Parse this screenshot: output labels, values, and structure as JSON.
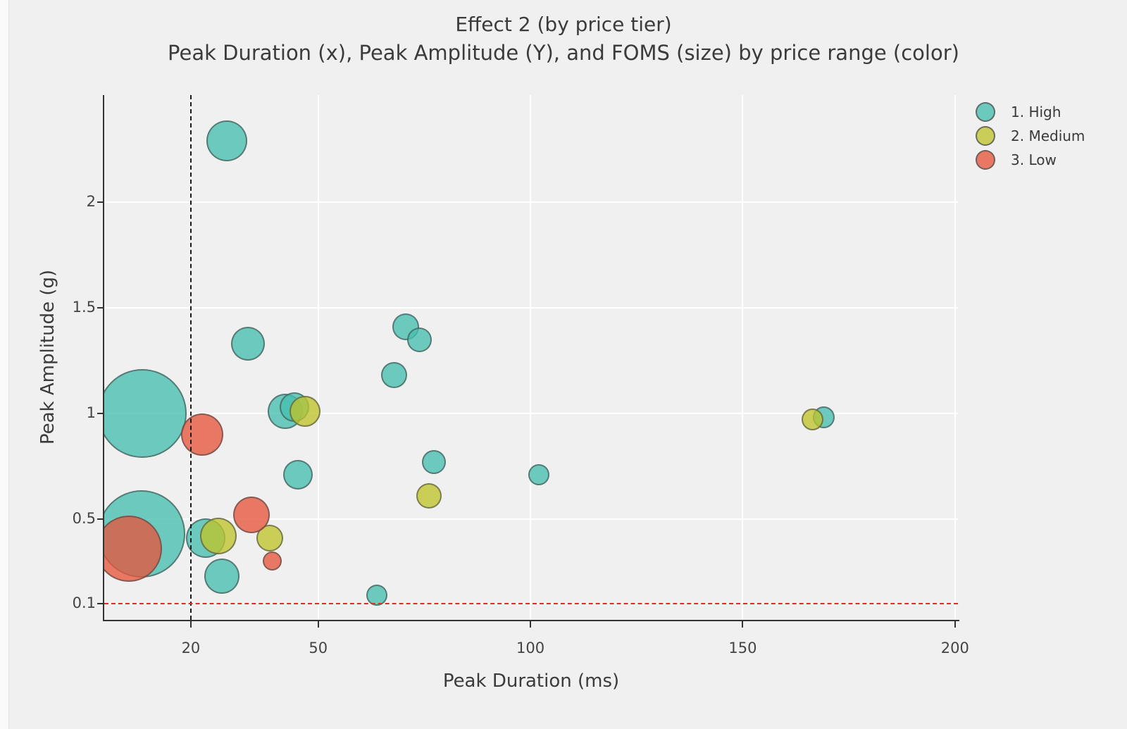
{
  "header": {
    "title": "Effect 2 (by price tier)",
    "subtitle": "Peak Duration (x), Peak Amplitude (Y), and FOMS (size) by price range (color)"
  },
  "legend": {
    "items": [
      {
        "label": "1. High",
        "color": "#45bfae"
      },
      {
        "label": "2. Medium",
        "color": "#bfc42a"
      },
      {
        "label": "3. Low",
        "color": "#e6563c"
      }
    ],
    "fill_alpha": 0.78,
    "position": "right"
  },
  "colors": {
    "background": "#f0f0f0",
    "grid": "#ffffff",
    "axis": "#333333",
    "text": "#3a3a3a",
    "vline": "#1a1a1a",
    "hline": "#e02b2b",
    "bubble_border": "rgba(70,70,70,0.6)"
  },
  "chart_data": {
    "type": "scatter",
    "title": "Effect 2 (by price tier)",
    "subtitle": "Peak Duration (x), Peak Amplitude (Y), and FOMS (size) by price range (color)",
    "xlabel": "Peak Duration (ms)",
    "ylabel": "Peak Amplitude (g)",
    "size_encoding": "FOMS",
    "color_encoding": "price range",
    "xticks": [
      20,
      50,
      100,
      150,
      200
    ],
    "yticks": [
      0.1,
      0.5,
      1,
      1.5,
      2
    ],
    "xtick_labels": [
      "20",
      "50",
      "100",
      "150",
      "200"
    ],
    "ytick_labels": [
      "0.1",
      "0.5",
      "1",
      "1.5",
      "2"
    ],
    "xlim": [
      -0.4,
      200.7
    ],
    "ylim": [
      0.023,
      2.507
    ],
    "grid": true,
    "legend_position": "right",
    "reference_lines": {
      "vline_x": 20,
      "vline_style": "black dashed",
      "hline_y": 0.1,
      "hline_style": "red dashed"
    },
    "series": [
      {
        "name": "1. High",
        "color": "#45bfae",
        "points": [
          {
            "x": 8.6,
            "y": 1.0,
            "r": 63
          },
          {
            "x": 28.5,
            "y": 2.29,
            "r": 29
          },
          {
            "x": 33.4,
            "y": 1.33,
            "r": 24
          },
          {
            "x": 42.2,
            "y": 1.01,
            "r": 25
          },
          {
            "x": 44.4,
            "y": 1.03,
            "r": 21
          },
          {
            "x": 70.6,
            "y": 1.41,
            "r": 19
          },
          {
            "x": 73.9,
            "y": 1.35,
            "r": 17.5
          },
          {
            "x": 67.8,
            "y": 1.18,
            "r": 18.5
          },
          {
            "x": 45.2,
            "y": 0.71,
            "r": 21
          },
          {
            "x": 77.2,
            "y": 0.77,
            "r": 17
          },
          {
            "x": 101.9,
            "y": 0.71,
            "r": 15
          },
          {
            "x": 169.1,
            "y": 0.98,
            "r": 15.5
          },
          {
            "x": 8.4,
            "y": 0.43,
            "r": 62
          },
          {
            "x": 23.5,
            "y": 0.41,
            "r": 28
          },
          {
            "x": 27.3,
            "y": 0.23,
            "r": 25
          },
          {
            "x": 63.8,
            "y": 0.14,
            "r": 15
          }
        ]
      },
      {
        "name": "2. Medium",
        "color": "#bfc42a",
        "points": [
          {
            "x": 46.9,
            "y": 1.01,
            "r": 22
          },
          {
            "x": 166.4,
            "y": 0.97,
            "r": 15.5
          },
          {
            "x": 26.5,
            "y": 0.42,
            "r": 26
          },
          {
            "x": 38.6,
            "y": 0.41,
            "r": 19
          },
          {
            "x": 76.1,
            "y": 0.61,
            "r": 18
          }
        ]
      },
      {
        "name": "3. Low",
        "color": "#e6563c",
        "points": [
          {
            "x": 22.7,
            "y": 0.9,
            "r": 30
          },
          {
            "x": 5.4,
            "y": 0.36,
            "r": 47
          },
          {
            "x": 34.3,
            "y": 0.52,
            "r": 26
          },
          {
            "x": 39.1,
            "y": 0.3,
            "r": 13.5
          }
        ]
      }
    ]
  }
}
